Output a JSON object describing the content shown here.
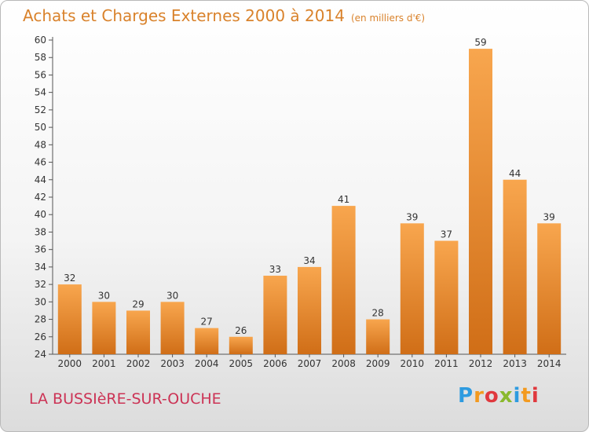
{
  "header": {
    "title": "Achats et Charges Externes 2000 à 2014",
    "unit": "(en milliers d'€)"
  },
  "footer": {
    "place": "LA BUSSIèRE-SUR-OUCHE",
    "logo": [
      "P",
      "r",
      "o",
      "x",
      "i",
      "t",
      "i"
    ]
  },
  "colors": {
    "title": "#d9822b",
    "place": "#cc3355",
    "bar_top": "#f8a64e",
    "bar_bottom": "#d06e17",
    "logo": [
      "#2e9be0",
      "#f39a1f",
      "#e0393e",
      "#8ab92d",
      "#2e9be0",
      "#f39a1f",
      "#e0393e"
    ]
  },
  "chart_data": {
    "type": "bar",
    "categories": [
      "2000",
      "2001",
      "2002",
      "2003",
      "2004",
      "2005",
      "2006",
      "2007",
      "2008",
      "2009",
      "2010",
      "2011",
      "2012",
      "2013",
      "2014"
    ],
    "values": [
      32,
      30,
      29,
      30,
      27,
      26,
      33,
      34,
      41,
      28,
      39,
      37,
      59,
      44,
      39
    ],
    "ylim": [
      24,
      60
    ],
    "yticks": [
      24,
      26,
      28,
      30,
      32,
      34,
      36,
      38,
      40,
      42,
      44,
      46,
      48,
      50,
      52,
      54,
      56,
      58,
      60
    ],
    "grid": false,
    "data_labels": true
  }
}
